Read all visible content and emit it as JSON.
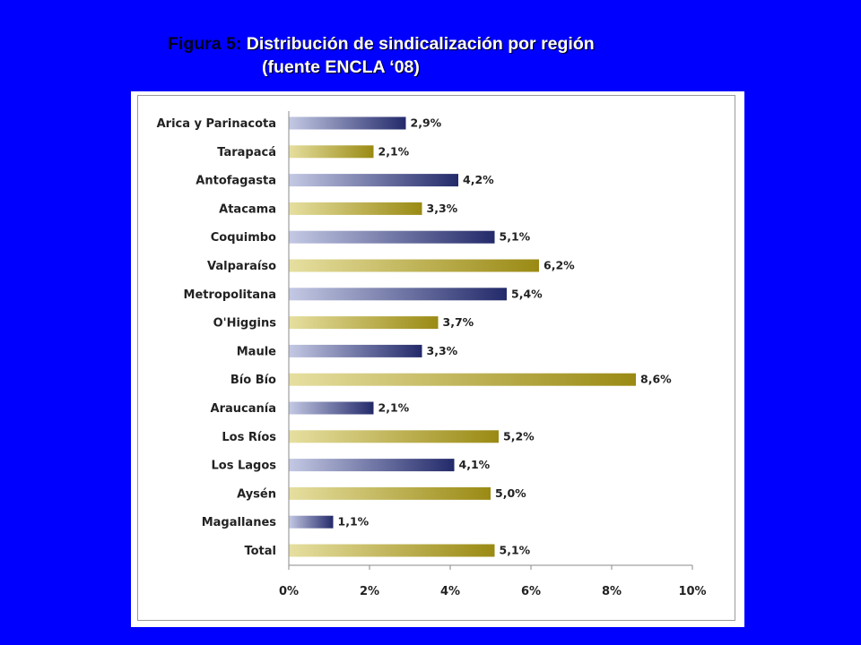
{
  "title": {
    "figure_label": "Figura 5:",
    "line1": "Distribución de sindicalización por región",
    "line2": "(fuente ENCLA ‘08)"
  },
  "colors": {
    "background": "#0000ff",
    "blue_bar_light": "#c4c9e4",
    "blue_bar_dark": "#232a6a",
    "gold_bar_light": "#e6dfa0",
    "gold_bar_dark": "#9a8a14"
  },
  "chart_data": {
    "type": "bar",
    "orientation": "horizontal",
    "categories": [
      "Arica y Parinacota",
      "Tarapacá",
      "Antofagasta",
      "Atacama",
      "Coquimbo",
      "Valparaíso",
      "Metropolitana",
      "O'Higgins",
      "Maule",
      "Bío Bío",
      "Araucanía",
      "Los Ríos",
      "Los Lagos",
      "Aysén",
      "Magallanes",
      "Total"
    ],
    "values": [
      2.9,
      2.1,
      4.2,
      3.3,
      5.1,
      6.2,
      5.4,
      3.7,
      3.3,
      8.6,
      2.1,
      5.2,
      4.1,
      5.0,
      1.1,
      5.1
    ],
    "value_labels": [
      "2,9%",
      "2,1%",
      "4,2%",
      "3,3%",
      "5,1%",
      "6,2%",
      "5,4%",
      "3,7%",
      "3,3%",
      "8,6%",
      "2,1%",
      "5,2%",
      "4,1%",
      "5,0%",
      "1,1%",
      "5,1%"
    ],
    "bar_colors": [
      "blue",
      "gold",
      "blue",
      "gold",
      "blue",
      "gold",
      "blue",
      "gold",
      "blue",
      "gold",
      "blue",
      "gold",
      "blue",
      "gold",
      "blue",
      "gold"
    ],
    "x_ticks": [
      0,
      2,
      4,
      6,
      8,
      10
    ],
    "x_tick_labels": [
      "0%",
      "2%",
      "4%",
      "6%",
      "8%",
      "10%"
    ],
    "xlim": [
      0,
      10
    ],
    "grid": false,
    "legend": "none"
  }
}
